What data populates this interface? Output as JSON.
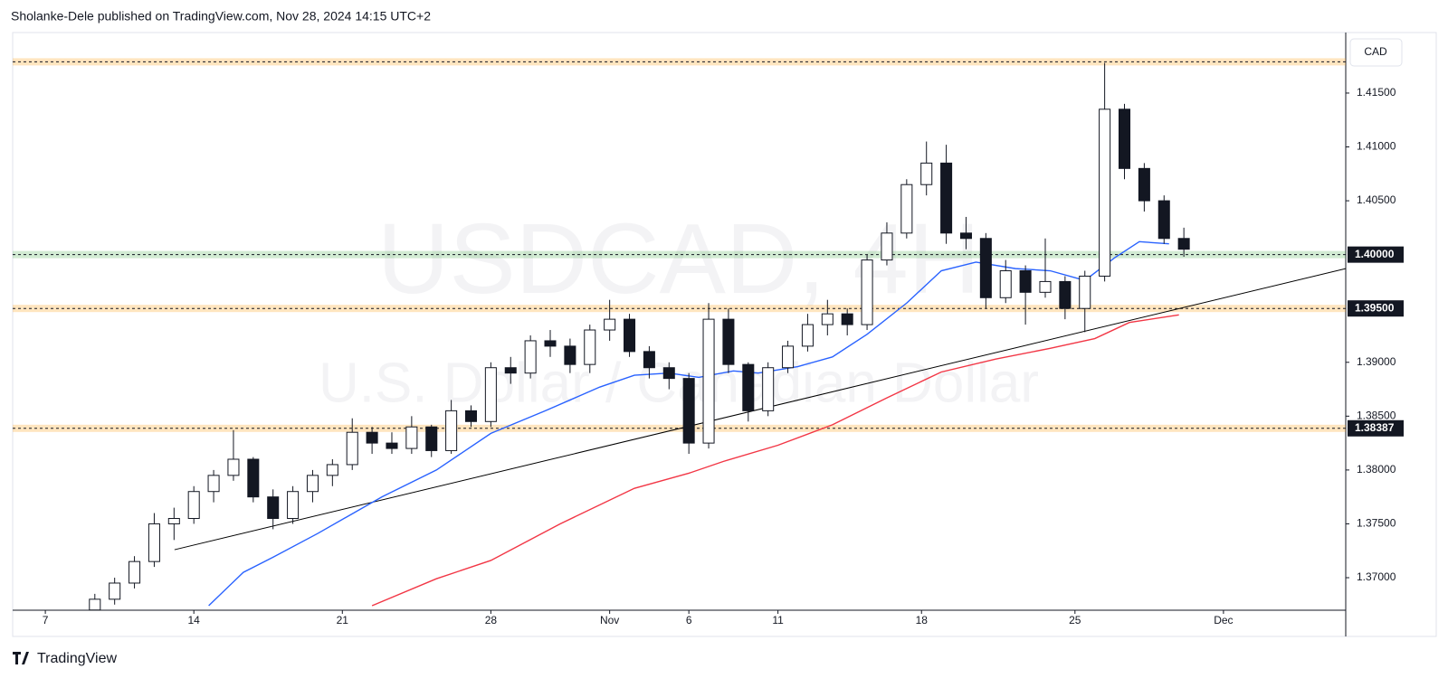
{
  "header": "Sholanke-Dele published on TradingView.com, Nov 28, 2024 14:15 UTC+2",
  "footer": "TradingView",
  "chart_data": {
    "type": "candlestick",
    "watermark": "USDCAD, 4H",
    "watermark_subtitle": "U.S. Dollar / Canadian Dollar",
    "currency": "CAD",
    "x": [
      10,
      14,
      18,
      22,
      26,
      30,
      34,
      38,
      42,
      46,
      50,
      54,
      58,
      62,
      66,
      70,
      74,
      78,
      82,
      86,
      90,
      94,
      98,
      102,
      106,
      110,
      114,
      118,
      122,
      126,
      130,
      134,
      138,
      142,
      146,
      150,
      154,
      158,
      162,
      166,
      170,
      174,
      178,
      182,
      186,
      190,
      194,
      198,
      202,
      206,
      210,
      214,
      218,
      222,
      226,
      230
    ],
    "open": [
      1.367,
      1.368,
      1.3695,
      1.3715,
      1.375,
      1.3755,
      1.378,
      1.3795,
      1.381,
      1.3775,
      1.3755,
      1.378,
      1.3795,
      1.3805,
      1.3835,
      1.3825,
      1.382,
      1.384,
      1.3818,
      1.3855,
      1.3845,
      1.3895,
      1.389,
      1.392,
      1.3915,
      1.3898,
      1.393,
      1.394,
      1.391,
      1.3895,
      1.3885,
      1.3825,
      1.394,
      1.3898,
      1.3855,
      1.3895,
      1.3915,
      1.3935,
      1.3945,
      1.3935,
      1.3995,
      1.402,
      1.4065,
      1.4085,
      1.402,
      1.4015,
      1.396,
      1.3985,
      1.3965,
      1.3975,
      1.395,
      1.398,
      1.4135,
      1.408,
      1.405,
      1.4015
    ],
    "high": [
      1.3685,
      1.37,
      1.372,
      1.376,
      1.3765,
      1.3785,
      1.38,
      1.3837,
      1.3812,
      1.3782,
      1.3785,
      1.38,
      1.381,
      1.3848,
      1.384,
      1.3835,
      1.385,
      1.3842,
      1.3865,
      1.386,
      1.39,
      1.3905,
      1.3925,
      1.393,
      1.3922,
      1.3935,
      1.3958,
      1.3945,
      1.3915,
      1.39,
      1.389,
      1.3955,
      1.395,
      1.39,
      1.39,
      1.392,
      1.3945,
      1.3958,
      1.395,
      1.4,
      1.403,
      1.407,
      1.4105,
      1.4102,
      1.4035,
      1.402,
      1.3995,
      1.399,
      1.4015,
      1.398,
      1.3985,
      1.4178,
      1.414,
      1.4085,
      1.4055,
      1.4025
    ],
    "low": [
      1.3665,
      1.3675,
      1.369,
      1.371,
      1.3735,
      1.375,
      1.377,
      1.379,
      1.377,
      1.3745,
      1.375,
      1.377,
      1.3785,
      1.38,
      1.3815,
      1.3815,
      1.3815,
      1.3812,
      1.3815,
      1.384,
      1.384,
      1.388,
      1.3885,
      1.3905,
      1.389,
      1.389,
      1.392,
      1.3905,
      1.3885,
      1.3875,
      1.3815,
      1.382,
      1.389,
      1.3845,
      1.385,
      1.389,
      1.391,
      1.3925,
      1.3925,
      1.393,
      1.399,
      1.4015,
      1.4055,
      1.401,
      1.4005,
      1.395,
      1.3955,
      1.3935,
      1.396,
      1.394,
      1.3928,
      1.3975,
      1.407,
      1.404,
      1.401,
      1.3998
    ],
    "close": [
      1.368,
      1.3695,
      1.3715,
      1.375,
      1.3755,
      1.378,
      1.3795,
      1.381,
      1.3775,
      1.3755,
      1.378,
      1.3795,
      1.3805,
      1.3835,
      1.3825,
      1.382,
      1.384,
      1.3818,
      1.3855,
      1.3845,
      1.3895,
      1.389,
      1.392,
      1.3915,
      1.3898,
      1.393,
      1.394,
      1.391,
      1.3895,
      1.3885,
      1.3825,
      1.394,
      1.3898,
      1.3855,
      1.3895,
      1.3915,
      1.3935,
      1.3945,
      1.3935,
      1.3995,
      1.402,
      1.4065,
      1.4085,
      1.402,
      1.4015,
      1.396,
      1.3985,
      1.3965,
      1.3975,
      1.395,
      1.398,
      1.4135,
      1.408,
      1.405,
      1.4015,
      1.4005
    ],
    "series": [
      {
        "color": "#2962ff",
        "x": [
          33,
          40,
          46,
          55,
          68,
          79,
          90,
          101,
          112,
          119,
          126,
          132,
          139,
          144,
          152,
          159,
          166,
          174,
          181,
          188,
          196,
          203,
          210,
          216,
          221,
          227
        ],
        "values": [
          1.3674,
          1.3705,
          1.3719,
          1.3741,
          1.3775,
          1.38,
          1.3834,
          1.3855,
          1.3877,
          1.3888,
          1.389,
          1.3886,
          1.3892,
          1.389,
          1.3896,
          1.3905,
          1.3926,
          1.3955,
          1.3985,
          1.3993,
          1.3987,
          1.3985,
          1.3976,
          1.3997,
          1.4012,
          1.401
        ]
      },
      {
        "color": "#f23645",
        "x": [
          66,
          79,
          90,
          104,
          119,
          130,
          137,
          148,
          159,
          170,
          181,
          192,
          203,
          212,
          219,
          229
        ],
        "values": [
          1.3674,
          1.3699,
          1.3716,
          1.375,
          1.3783,
          1.3797,
          1.3808,
          1.3823,
          1.3842,
          1.3867,
          1.3891,
          1.3903,
          1.3913,
          1.3922,
          1.3937,
          1.3944
        ]
      }
    ],
    "trendline": {
      "x": [
        26.1,
        262.7
      ],
      "values": [
        1.3726,
        1.3987
      ],
      "color": "#000000"
    },
    "levels": [
      {
        "value": 1.4179,
        "color": "#ff9800"
      },
      {
        "value": 1.4,
        "label": "1.40000",
        "color": "#4caf50"
      },
      {
        "value": 1.395,
        "label": "1.39500",
        "color": "#ff9800"
      },
      {
        "value": 1.38387,
        "label": "1.38387",
        "color": "#ff9800"
      }
    ],
    "xlim": [
      -6.6,
      262.7
    ],
    "ylim": [
      1.36698,
      1.42062
    ],
    "xticks": [
      {
        "value": 0,
        "label": "7"
      },
      {
        "value": 30,
        "label": "14"
      },
      {
        "value": 60,
        "label": "21"
      },
      {
        "value": 90,
        "label": "28"
      },
      {
        "value": 114,
        "label": "Nov"
      },
      {
        "value": 130,
        "label": "6"
      },
      {
        "value": 148,
        "label": "11"
      },
      {
        "value": 177,
        "label": "18"
      },
      {
        "value": 208,
        "label": "25"
      },
      {
        "value": 238,
        "label": "Dec"
      }
    ],
    "yticks": [
      {
        "value": 1.415,
        "label": "1.41500"
      },
      {
        "value": 1.41,
        "label": "1.41000"
      },
      {
        "value": 1.405,
        "label": "1.40500"
      },
      {
        "value": 1.39,
        "label": "1.39000"
      },
      {
        "value": 1.385,
        "label": "1.38500"
      },
      {
        "value": 1.38,
        "label": "1.38000"
      },
      {
        "value": 1.375,
        "label": "1.37500"
      },
      {
        "value": 1.37,
        "label": "1.37000"
      }
    ]
  }
}
